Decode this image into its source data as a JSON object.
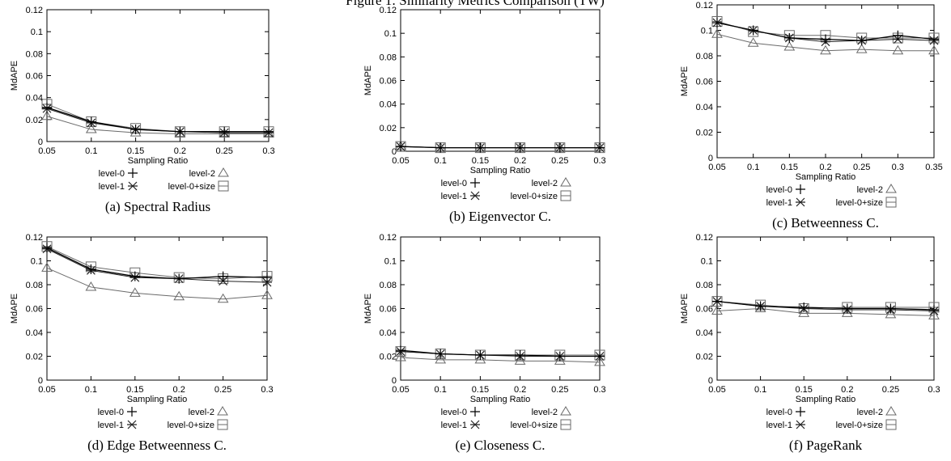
{
  "figure_title": "Figure 1: Similarity Metrics Comparison (TW)",
  "legend_labels": [
    "level-0",
    "level-1",
    "level-2",
    "level-0+size"
  ],
  "colors": {
    "level-0": "#000000",
    "level-1": "#222222",
    "level-2": "#6a6a6a",
    "level-0+size": "#6a6a6a"
  },
  "chart_data": [
    {
      "type": "line",
      "caption": "(a) Spectral Radius",
      "xlabel": "Sampling Ratio",
      "ylabel": "MdAPE",
      "x": [
        0.05,
        0.1,
        0.15,
        0.2,
        0.25,
        0.3
      ],
      "xlim": [
        0.05,
        0.3
      ],
      "xticks": [
        "0.05",
        "0.1",
        "0.15",
        "0.2",
        "0.25",
        "0.3"
      ],
      "ylim": [
        0,
        0.12
      ],
      "yticks": [
        "0",
        "0.02",
        "0.04",
        "0.06",
        "0.08",
        "0.1",
        "0.12"
      ],
      "series": [
        {
          "name": "level-0",
          "values": [
            0.031,
            0.018,
            0.011,
            0.009,
            0.009,
            0.009
          ]
        },
        {
          "name": "level-1",
          "values": [
            0.03,
            0.017,
            0.011,
            0.009,
            0.008,
            0.008
          ]
        },
        {
          "name": "level-2",
          "values": [
            0.023,
            0.011,
            0.008,
            0.007,
            0.007,
            0.007
          ]
        },
        {
          "name": "level-0+size",
          "values": [
            0.034,
            0.018,
            0.012,
            0.009,
            0.009,
            0.009
          ]
        }
      ]
    },
    {
      "type": "line",
      "caption": "(b) Eigenvector C.",
      "xlabel": "Sampling Ratio",
      "ylabel": "MdAPE",
      "x": [
        0.05,
        0.1,
        0.15,
        0.2,
        0.25,
        0.3
      ],
      "xlim": [
        0.05,
        0.3
      ],
      "xticks": [
        "0.05",
        "0.1",
        "0.15",
        "0.2",
        "0.25",
        "0.3"
      ],
      "ylim": [
        0,
        0.12
      ],
      "yticks": [
        "0",
        "0.02",
        "0.04",
        "0.06",
        "0.08",
        "0.1",
        "0.12"
      ],
      "series": [
        {
          "name": "level-0",
          "values": [
            0.004,
            0.003,
            0.003,
            0.003,
            0.003,
            0.003
          ]
        },
        {
          "name": "level-1",
          "values": [
            0.004,
            0.003,
            0.003,
            0.003,
            0.003,
            0.003
          ]
        },
        {
          "name": "level-2",
          "values": [
            0.004,
            0.003,
            0.003,
            0.003,
            0.003,
            0.003
          ]
        },
        {
          "name": "level-0+size",
          "values": [
            0.004,
            0.003,
            0.003,
            0.003,
            0.003,
            0.003
          ]
        }
      ]
    },
    {
      "type": "line",
      "caption": "(c) Betweenness C.",
      "xlabel": "Sampling Ratio",
      "ylabel": "MdAPE",
      "x": [
        0.05,
        0.1,
        0.15,
        0.2,
        0.25,
        0.3,
        0.35
      ],
      "xlim": [
        0.05,
        0.35
      ],
      "xticks": [
        "0.05",
        "0.1",
        "0.15",
        "0.2",
        "0.25",
        "0.3",
        "0.35"
      ],
      "ylim": [
        0,
        0.12
      ],
      "yticks": [
        "0",
        "0.02",
        "0.04",
        "0.06",
        "0.08",
        "0.1",
        "0.12"
      ],
      "series": [
        {
          "name": "level-0",
          "values": [
            0.106,
            0.1,
            0.094,
            0.093,
            0.092,
            0.096,
            0.093
          ]
        },
        {
          "name": "level-1",
          "values": [
            0.106,
            0.1,
            0.094,
            0.091,
            0.092,
            0.093,
            0.092
          ]
        },
        {
          "name": "level-2",
          "values": [
            0.097,
            0.09,
            0.087,
            0.084,
            0.085,
            0.084,
            0.084
          ]
        },
        {
          "name": "level-0+size",
          "values": [
            0.107,
            0.099,
            0.096,
            0.096,
            0.094,
            0.094,
            0.094
          ]
        }
      ]
    },
    {
      "type": "line",
      "caption": "(d) Edge Betweenness C.",
      "xlabel": "Sampling Ratio",
      "ylabel": "MdAPE",
      "x": [
        0.05,
        0.1,
        0.15,
        0.2,
        0.25,
        0.3
      ],
      "xlim": [
        0.05,
        0.3
      ],
      "xticks": [
        "0.05",
        "0.1",
        "0.15",
        "0.2",
        "0.25",
        "0.3"
      ],
      "ylim": [
        0,
        0.12
      ],
      "yticks": [
        "0",
        "0.02",
        "0.04",
        "0.06",
        "0.08",
        "0.1",
        "0.12"
      ],
      "series": [
        {
          "name": "level-0",
          "values": [
            0.111,
            0.093,
            0.087,
            0.085,
            0.087,
            0.086
          ]
        },
        {
          "name": "level-1",
          "values": [
            0.11,
            0.092,
            0.086,
            0.085,
            0.083,
            0.082
          ]
        },
        {
          "name": "level-2",
          "values": [
            0.094,
            0.078,
            0.073,
            0.07,
            0.068,
            0.071
          ]
        },
        {
          "name": "level-0+size",
          "values": [
            0.112,
            0.095,
            0.09,
            0.086,
            0.085,
            0.087
          ]
        }
      ]
    },
    {
      "type": "line",
      "caption": "(e) Closeness C.",
      "xlabel": "Sampling Ratio",
      "ylabel": "MdAPE",
      "x": [
        0.05,
        0.1,
        0.15,
        0.2,
        0.25,
        0.3
      ],
      "xlim": [
        0.05,
        0.3
      ],
      "xticks": [
        "0.05",
        "0.1",
        "0.15",
        "0.2",
        "0.25",
        "0.3"
      ],
      "ylim": [
        0,
        0.12
      ],
      "yticks": [
        "0",
        "0.02",
        "0.04",
        "0.06",
        "0.08",
        "0.1",
        "0.12"
      ],
      "series": [
        {
          "name": "level-0",
          "values": [
            0.025,
            0.022,
            0.021,
            0.021,
            0.02,
            0.02
          ]
        },
        {
          "name": "level-1",
          "values": [
            0.024,
            0.022,
            0.021,
            0.02,
            0.02,
            0.02
          ]
        },
        {
          "name": "level-2",
          "values": [
            0.019,
            0.017,
            0.017,
            0.016,
            0.016,
            0.015
          ]
        },
        {
          "name": "level-0+size",
          "values": [
            0.024,
            0.022,
            0.021,
            0.021,
            0.021,
            0.021
          ]
        }
      ]
    },
    {
      "type": "line",
      "caption": "(f) PageRank",
      "xlabel": "Sampling Ratio",
      "ylabel": "MdAPE",
      "x": [
        0.05,
        0.1,
        0.15,
        0.2,
        0.25,
        0.3
      ],
      "xlim": [
        0.05,
        0.3
      ],
      "xticks": [
        "0.05",
        "0.1",
        "0.15",
        "0.2",
        "0.25",
        "0.3"
      ],
      "ylim": [
        0,
        0.12
      ],
      "yticks": [
        "0",
        "0.02",
        "0.04",
        "0.06",
        "0.08",
        "0.1",
        "0.12"
      ],
      "series": [
        {
          "name": "level-0",
          "values": [
            0.066,
            0.062,
            0.061,
            0.06,
            0.06,
            0.059
          ]
        },
        {
          "name": "level-1",
          "values": [
            0.066,
            0.062,
            0.06,
            0.059,
            0.059,
            0.058
          ]
        },
        {
          "name": "level-2",
          "values": [
            0.058,
            0.06,
            0.056,
            0.056,
            0.055,
            0.054
          ]
        },
        {
          "name": "level-0+size",
          "values": [
            0.066,
            0.063,
            0.06,
            0.061,
            0.061,
            0.061
          ]
        }
      ]
    }
  ]
}
